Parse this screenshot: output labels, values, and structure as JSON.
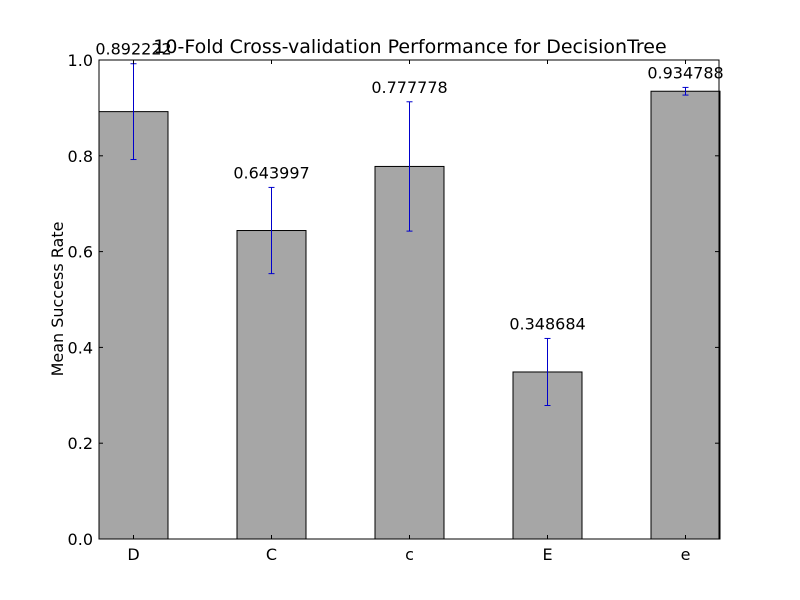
{
  "chart_data": {
    "type": "bar",
    "title": "10-Fold Cross-validation Performance for DecisionTree",
    "xlabel": "",
    "ylabel": "Mean Success Rate",
    "categories": [
      "D",
      "C",
      "c",
      "E",
      "e"
    ],
    "values": [
      0.892222,
      0.643997,
      0.777778,
      0.348684,
      0.934788
    ],
    "value_labels": [
      "0.892222",
      "0.643997",
      "0.777778",
      "0.348684",
      "0.934788"
    ],
    "error": [
      0.1,
      0.09,
      0.135,
      0.07,
      0.008
    ],
    "ylim": [
      0,
      1.0
    ],
    "yticks": [
      0.0,
      0.2,
      0.4,
      0.6,
      0.8,
      1.0
    ],
    "ytick_labels": [
      "0.0",
      "0.2",
      "0.4",
      "0.6",
      "0.8",
      "1.0"
    ],
    "grid": false,
    "colors": {
      "bar": "#a6a6a6",
      "error": "#0000cc",
      "axis": "#000000"
    }
  }
}
